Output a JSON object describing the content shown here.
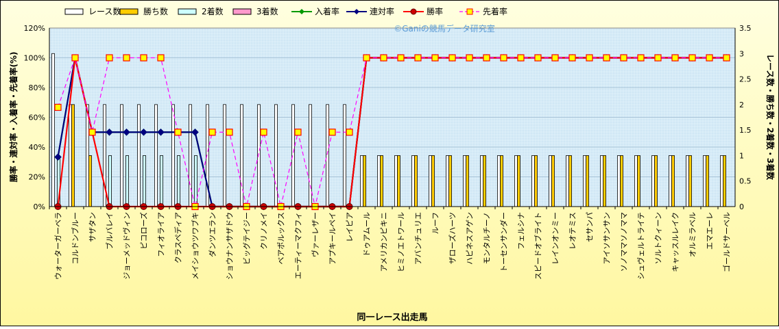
{
  "watermark": "©Ganiの競馬データ研究室",
  "chart_data": {
    "type": "bar",
    "xlabel": "同一レース出走馬",
    "ylabel_left": "勝率・連対率・入着率・先着率(%)",
    "ylabel_right": "レース数・勝ち数・2着数・3着数",
    "left_axis": {
      "min": 0,
      "max": 120,
      "step": 20,
      "unit": "%"
    },
    "right_axis": {
      "min": 0,
      "max": 3.5,
      "step": 0.5
    },
    "grid": true,
    "legend_position": "top",
    "categories": [
      "ウォーターガーベラ",
      "コルドンブルー",
      "サザタン",
      "ブルバレイ",
      "ジョーメッドヴィン",
      "ピコローズ",
      "フィオライア",
      "クラスペディア",
      "メイショウツワブキ",
      "ダンツエラン",
      "ショウナンサザドウ",
      "ビッグテイジー",
      "クリノメイ",
      "ベアポルックス",
      "エーティーマクフィ",
      "ヴァーレザー",
      "アプキールペイ",
      "レイピア",
      "ドゥアムール",
      "アメリカンピキニ",
      "ヒミノエトワール",
      "アバンチュリエ",
      "ルーフ",
      "ザローズハーツ",
      "ハピネスアゲン",
      "モンタルチーノ",
      "トーセンサンダー",
      "フェルシナ",
      "スピードオブライト",
      "レインオンミー",
      "レオテミス",
      "セサンパ",
      "アイソサンサン",
      "ソノママソノママ",
      "シュヴェルトライテ",
      "ソルトクィーン",
      "キャッスルレイク",
      "オルミラベル",
      "エマエーレ",
      "ゴールドサーベル"
    ],
    "series": [
      {
        "name": "レース数",
        "kind": "bar",
        "axis": "right",
        "color": "#ffffff",
        "values": [
          3,
          2,
          2,
          2,
          2,
          2,
          2,
          2,
          2,
          2,
          2,
          2,
          2,
          2,
          2,
          2,
          2,
          2,
          1,
          1,
          1,
          1,
          1,
          1,
          1,
          1,
          1,
          1,
          1,
          1,
          1,
          1,
          1,
          1,
          1,
          1,
          1,
          1,
          1,
          1
        ]
      },
      {
        "name": "勝ち数",
        "kind": "bar",
        "axis": "right",
        "color": "#ffcc00",
        "values": [
          0,
          2,
          1,
          0,
          0,
          0,
          0,
          0,
          0,
          0,
          0,
          0,
          0,
          0,
          0,
          0,
          0,
          0,
          1,
          1,
          1,
          1,
          1,
          1,
          1,
          1,
          1,
          1,
          1,
          1,
          1,
          1,
          1,
          1,
          1,
          1,
          1,
          1,
          1,
          1
        ]
      },
      {
        "name": "2着数",
        "kind": "bar",
        "axis": "right",
        "color": "#ccffff",
        "values": [
          1,
          0,
          0,
          1,
          1,
          1,
          1,
          1,
          1,
          0,
          0,
          0,
          0,
          0,
          0,
          0,
          0,
          0,
          0,
          0,
          0,
          0,
          0,
          0,
          0,
          0,
          0,
          0,
          0,
          0,
          0,
          0,
          0,
          0,
          0,
          0,
          0,
          0,
          0,
          0
        ]
      },
      {
        "name": "3着数",
        "kind": "bar",
        "axis": "right",
        "color": "#ff99cc",
        "values": [
          0,
          0,
          0,
          0,
          0,
          0,
          0,
          0,
          0,
          0,
          0,
          0,
          0,
          0,
          0,
          0,
          0,
          0,
          0,
          0,
          0,
          0,
          0,
          0,
          0,
          0,
          0,
          0,
          0,
          0,
          0,
          0,
          0,
          0,
          0,
          0,
          0,
          0,
          0,
          0
        ]
      },
      {
        "name": "入着率",
        "kind": "line",
        "axis": "left",
        "color": "#009900",
        "marker": "diamond",
        "values": [
          33.3,
          100,
          50,
          50,
          50,
          50,
          50,
          50,
          50,
          0,
          0,
          0,
          0,
          0,
          0,
          0,
          0,
          0,
          100,
          100,
          100,
          100,
          100,
          100,
          100,
          100,
          100,
          100,
          100,
          100,
          100,
          100,
          100,
          100,
          100,
          100,
          100,
          100,
          100,
          100
        ]
      },
      {
        "name": "連対率",
        "kind": "line",
        "axis": "left",
        "color": "#000080",
        "marker": "diamond",
        "values": [
          33.3,
          100,
          50,
          50,
          50,
          50,
          50,
          50,
          50,
          0,
          0,
          0,
          0,
          0,
          0,
          0,
          0,
          0,
          100,
          100,
          100,
          100,
          100,
          100,
          100,
          100,
          100,
          100,
          100,
          100,
          100,
          100,
          100,
          100,
          100,
          100,
          100,
          100,
          100,
          100
        ]
      },
      {
        "name": "勝率",
        "kind": "line",
        "axis": "left",
        "color": "#ff0000",
        "marker": "circle",
        "values": [
          0,
          100,
          50,
          0,
          0,
          0,
          0,
          0,
          0,
          0,
          0,
          0,
          0,
          0,
          0,
          0,
          0,
          0,
          100,
          100,
          100,
          100,
          100,
          100,
          100,
          100,
          100,
          100,
          100,
          100,
          100,
          100,
          100,
          100,
          100,
          100,
          100,
          100,
          100,
          100
        ]
      },
      {
        "name": "先着率",
        "kind": "line",
        "axis": "left",
        "color": "#ff00ff",
        "dashed": true,
        "marker": "square",
        "values": [
          66.7,
          100,
          50,
          100,
          100,
          100,
          100,
          50,
          0,
          50,
          50,
          0,
          50,
          0,
          50,
          0,
          50,
          50,
          100,
          100,
          100,
          100,
          100,
          100,
          100,
          100,
          100,
          100,
          100,
          100,
          100,
          100,
          100,
          100,
          100,
          100,
          100,
          100,
          100,
          100
        ]
      }
    ]
  }
}
